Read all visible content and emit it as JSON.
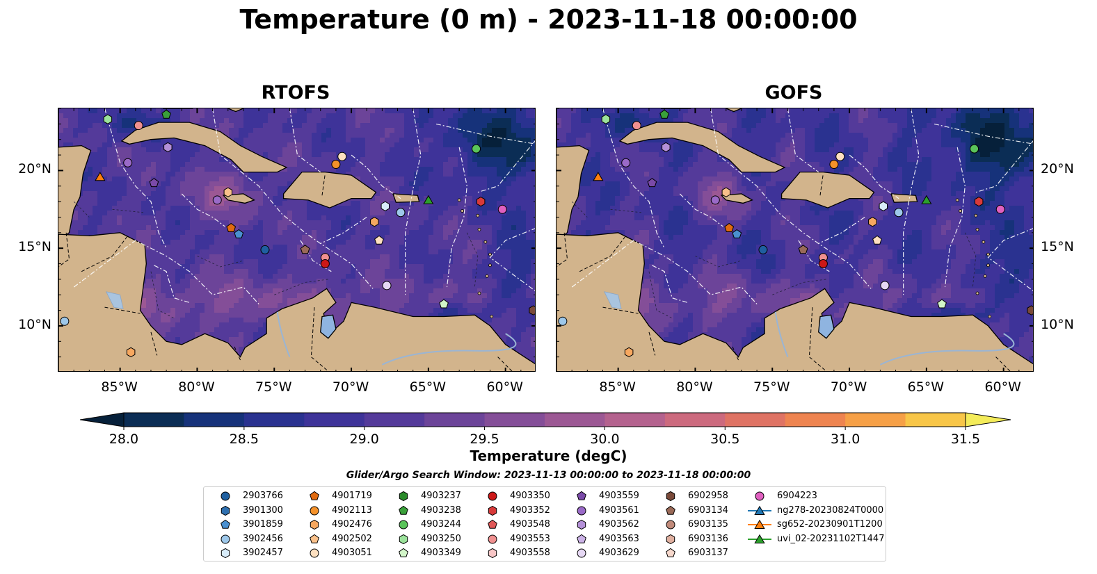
{
  "title": "Temperature (0 m) - 2023-11-18 00:00:00",
  "panels": [
    {
      "title": "RTOFS"
    },
    {
      "title": "GOFS"
    }
  ],
  "map": {
    "lon_range": [
      -89,
      -58
    ],
    "lat_range": [
      7,
      24
    ],
    "lon_ticks": [
      "85°W",
      "80°W",
      "75°W",
      "70°W",
      "65°W",
      "60°W"
    ],
    "lat_ticks": [
      "10°N",
      "15°N",
      "20°N"
    ],
    "land_color": "#d2b48c",
    "ocean_color": "#4a3a9a"
  },
  "colorbar": {
    "label": "Temperature (degC)",
    "ticks": [
      "28.0",
      "28.5",
      "29.0",
      "29.5",
      "30.0",
      "30.5",
      "31.0",
      "31.5"
    ],
    "min": 28.0,
    "max": 31.5,
    "extend": "both"
  },
  "search_window": "Glider/Argo Search Window: 2023-11-13 00:00:00 to 2023-11-18 00:00:00",
  "legend": {
    "columns": [
      [
        {
          "label": "2903766",
          "marker": "circle",
          "color": "#1f5fa0"
        },
        {
          "label": "3901300",
          "marker": "hexagon",
          "color": "#2f70b0"
        },
        {
          "label": "3901859",
          "marker": "pentagon",
          "color": "#4a90d0"
        },
        {
          "label": "3902456",
          "marker": "circle",
          "color": "#9ec8ea"
        },
        {
          "label": "3902457",
          "marker": "hexagon",
          "color": "#d8ecfa"
        }
      ],
      [
        {
          "label": "4901719",
          "marker": "pentagon",
          "color": "#e06a10"
        },
        {
          "label": "4902113",
          "marker": "circle",
          "color": "#f5922a"
        },
        {
          "label": "4902476",
          "marker": "hexagon",
          "color": "#f7a860"
        },
        {
          "label": "4902502",
          "marker": "pentagon",
          "color": "#f9c08a"
        },
        {
          "label": "4903051",
          "marker": "circle",
          "color": "#fde0c0"
        }
      ],
      [
        {
          "label": "4903237",
          "marker": "hexagon",
          "color": "#2a8a2a"
        },
        {
          "label": "4903238",
          "marker": "pentagon",
          "color": "#3aa03a"
        },
        {
          "label": "4903244",
          "marker": "circle",
          "color": "#5ac45a"
        },
        {
          "label": "4903250",
          "marker": "hexagon",
          "color": "#9be29b"
        },
        {
          "label": "4903349",
          "marker": "pentagon",
          "color": "#d2f5c8"
        }
      ],
      [
        {
          "label": "4903350",
          "marker": "circle",
          "color": "#cc1818"
        },
        {
          "label": "4903352",
          "marker": "hexagon",
          "color": "#d83a3a"
        },
        {
          "label": "4903548",
          "marker": "pentagon",
          "color": "#e05858"
        },
        {
          "label": "4903553",
          "marker": "circle",
          "color": "#f09090"
        },
        {
          "label": "4903558",
          "marker": "hexagon",
          "color": "#f8c6c6"
        }
      ],
      [
        {
          "label": "4903559",
          "marker": "pentagon",
          "color": "#7a4aa8"
        },
        {
          "label": "4903561",
          "marker": "circle",
          "color": "#9a6ac8"
        },
        {
          "label": "4903562",
          "marker": "hexagon",
          "color": "#b490d8"
        },
        {
          "label": "4903563",
          "marker": "pentagon",
          "color": "#cbb2e6"
        },
        {
          "label": "4903629",
          "marker": "circle",
          "color": "#e6d8f4"
        }
      ],
      [
        {
          "label": "6902958",
          "marker": "hexagon",
          "color": "#7a4a3a"
        },
        {
          "label": "6903134",
          "marker": "pentagon",
          "color": "#9a6a58"
        },
        {
          "label": "6903135",
          "marker": "circle",
          "color": "#c08a7a"
        },
        {
          "label": "6903136",
          "marker": "hexagon",
          "color": "#e0b0a0"
        },
        {
          "label": "6903137",
          "marker": "pentagon",
          "color": "#f6d8cc"
        }
      ],
      [
        {
          "label": "6904223",
          "marker": "circle",
          "color": "#e060c0"
        },
        {
          "label": "ng278-20230824T0000",
          "marker": "triangle-line",
          "color": "#1f77b4"
        },
        {
          "label": "sg652-20230901T1200",
          "marker": "triangle-line",
          "color": "#ff7f0e"
        },
        {
          "label": "uvi_02-20231102T1447",
          "marker": "triangle-line",
          "color": "#2ca02c"
        }
      ]
    ]
  }
}
